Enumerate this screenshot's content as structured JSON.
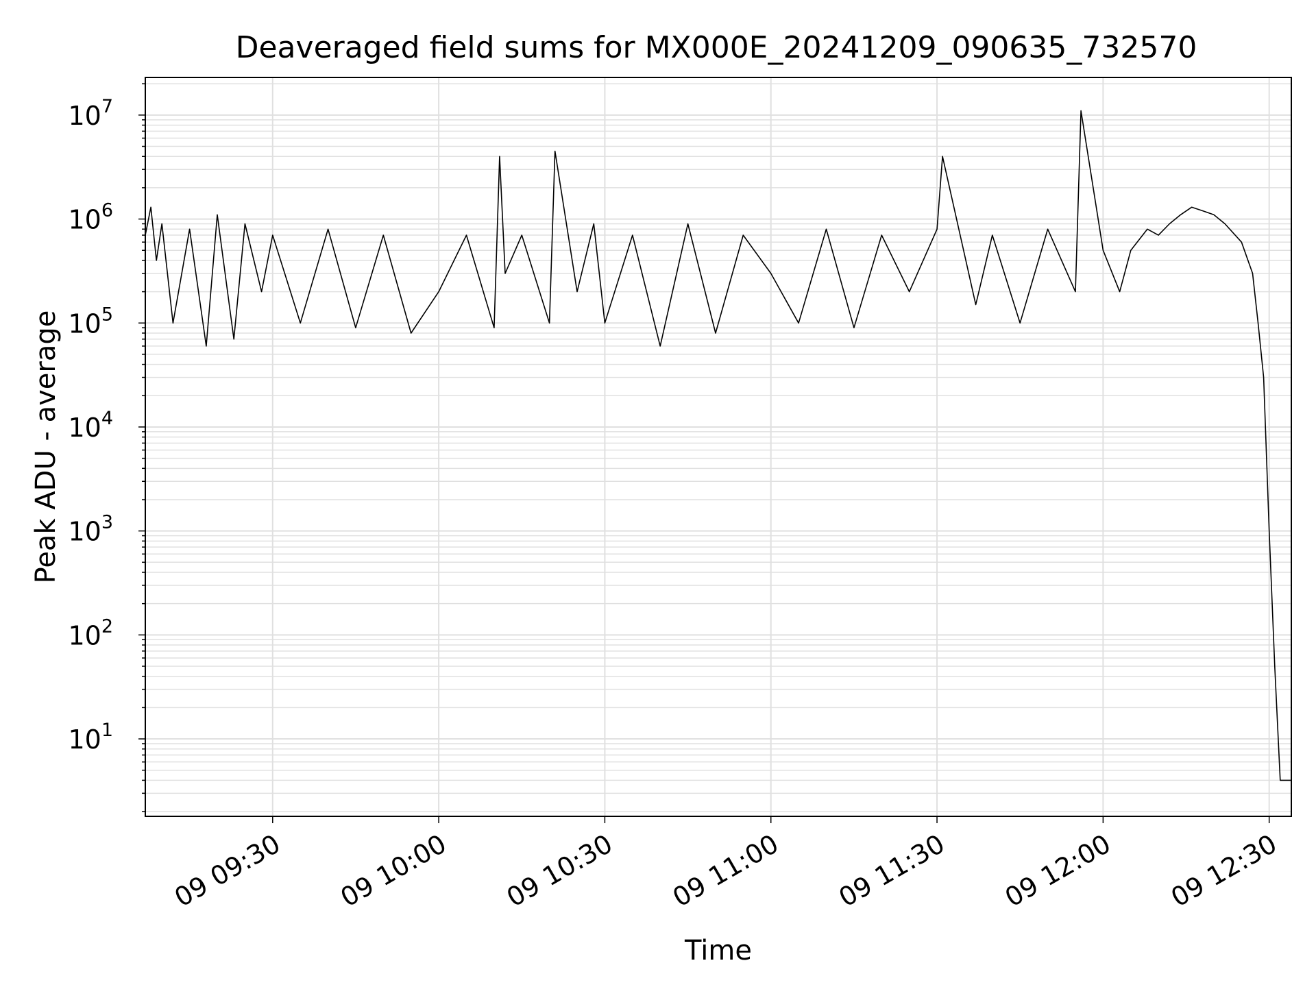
{
  "chart_data": {
    "type": "line",
    "title": "Deaveraged field sums for MX000E_20241209_090635_732570",
    "xlabel": "Time",
    "ylabel": "Peak ADU - average",
    "yscale": "log",
    "grid": true,
    "legend": "none",
    "colors": {
      "line": "#000000",
      "grid": "#e0e0e0",
      "axes": "#000000",
      "background": "#ffffff"
    },
    "x_ticks": [
      "09 09:30",
      "09 10:00",
      "09 10:30",
      "09 11:00",
      "09 11:30",
      "09 12:00",
      "09 12:30"
    ],
    "y_ticks": [
      {
        "base": "10",
        "exp": "1",
        "value": 10
      },
      {
        "base": "10",
        "exp": "2",
        "value": 100
      },
      {
        "base": "10",
        "exp": "3",
        "value": 1000
      },
      {
        "base": "10",
        "exp": "4",
        "value": 10000
      },
      {
        "base": "10",
        "exp": "5",
        "value": 100000
      },
      {
        "base": "10",
        "exp": "6",
        "value": 1000000
      },
      {
        "base": "10",
        "exp": "7",
        "value": 10000000
      }
    ],
    "xlim": [
      "09 09:07",
      "09 12:34"
    ],
    "ylim": [
      1.8,
      23000000
    ],
    "series": [
      {
        "x": [
          "09 09:07",
          "09 09:08",
          "09 09:09",
          "09 09:10",
          "09 09:12",
          "09 09:15",
          "09 09:18",
          "09 09:20",
          "09 09:23",
          "09 09:25",
          "09 09:28",
          "09 09:30",
          "09 09:35",
          "09 09:40",
          "09 09:45",
          "09 09:50",
          "09 09:55",
          "09 10:00",
          "09 10:05",
          "09 10:10",
          "09 10:11",
          "09 10:12",
          "09 10:15",
          "09 10:20",
          "09 10:21",
          "09 10:25",
          "09 10:28",
          "09 10:30",
          "09 10:35",
          "09 10:40",
          "09 10:45",
          "09 10:50",
          "09 10:55",
          "09 11:00",
          "09 11:05",
          "09 11:10",
          "09 11:15",
          "09 11:20",
          "09 11:25",
          "09 11:30",
          "09 11:31",
          "09 11:37",
          "09 11:40",
          "09 11:45",
          "09 11:50",
          "09 11:55",
          "09 11:56",
          "09 12:00",
          "09 12:03",
          "09 12:05",
          "09 12:08",
          "09 12:10",
          "09 12:12",
          "09 12:14",
          "09 12:16",
          "09 12:18",
          "09 12:20",
          "09 12:22",
          "09 12:25",
          "09 12:27",
          "09 12:28",
          "09 12:29",
          "09 12:30",
          "09 12:31",
          "09 12:32",
          "09 12:34"
        ],
        "values": [
          700000,
          1300000,
          400000,
          900000,
          100000,
          800000,
          60000,
          1100000,
          70000,
          900000,
          200000,
          700000,
          100000,
          800000,
          90000,
          700000,
          80000,
          200000,
          700000,
          90000,
          4000000,
          300000,
          700000,
          100000,
          4500000,
          200000,
          900000,
          100000,
          700000,
          60000,
          900000,
          80000,
          700000,
          300000,
          100000,
          800000,
          90000,
          700000,
          200000,
          800000,
          4000000,
          150000,
          700000,
          100000,
          800000,
          200000,
          11000000,
          500000,
          200000,
          500000,
          800000,
          700000,
          900000,
          1100000,
          1300000,
          1200000,
          1100000,
          900000,
          600000,
          300000,
          100000,
          30000,
          1000,
          50,
          4,
          4
        ]
      }
    ]
  }
}
